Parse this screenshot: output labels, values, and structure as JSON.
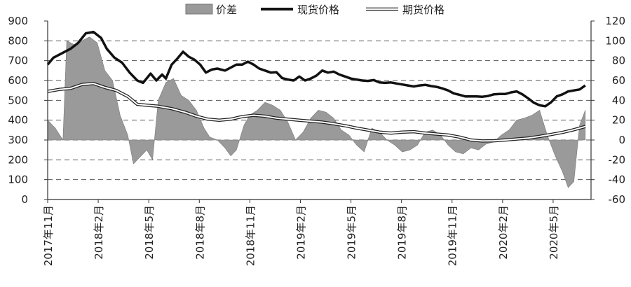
{
  "chart_data": {
    "type": "line",
    "title": "",
    "xlabel": "",
    "ylabel": "",
    "legend": {
      "placement": "top-center",
      "entries": [
        {
          "key": "spread",
          "label": "价差",
          "style": "area"
        },
        {
          "key": "spot",
          "label": "现货价格",
          "style": "thick-line"
        },
        {
          "key": "futures",
          "label": "期货价格",
          "style": "double-line"
        }
      ]
    },
    "x_ticks": [
      "2017年11月",
      "2018年2月",
      "2018年5月",
      "2018年8月",
      "2018年11月",
      "2019年2月",
      "2019年5月",
      "2019年8月",
      "2019年11月",
      "2020年2月",
      "2020年5月"
    ],
    "y_left": {
      "min": 0,
      "max": 900,
      "ticks": [
        0,
        100,
        200,
        300,
        400,
        500,
        600,
        700,
        800,
        900
      ]
    },
    "y_right": {
      "min": -60,
      "max": 120,
      "ticks": [
        -60,
        -40,
        -20,
        0,
        20,
        40,
        60,
        80,
        100,
        120
      ]
    },
    "grid": "dashed horizontal",
    "x_unit": "months since 2017-11",
    "series": [
      {
        "name": "现货价格",
        "axis": "left",
        "points": [
          [
            0,
            680
          ],
          [
            0.3,
            715
          ],
          [
            0.7,
            735
          ],
          [
            1.2,
            760
          ],
          [
            1.6,
            790
          ],
          [
            2.0,
            838
          ],
          [
            2.4,
            845
          ],
          [
            2.8,
            815
          ],
          [
            3.1,
            760
          ],
          [
            3.5,
            715
          ],
          [
            3.9,
            690
          ],
          [
            4.3,
            640
          ],
          [
            4.7,
            600
          ],
          [
            5.0,
            588
          ],
          [
            5.4,
            635
          ],
          [
            5.7,
            600
          ],
          [
            6.0,
            630
          ],
          [
            6.2,
            610
          ],
          [
            6.5,
            680
          ],
          [
            6.8,
            710
          ],
          [
            7.1,
            745
          ],
          [
            7.4,
            720
          ],
          [
            7.7,
            705
          ],
          [
            8.0,
            680
          ],
          [
            8.3,
            640
          ],
          [
            8.6,
            655
          ],
          [
            8.9,
            660
          ],
          [
            9.3,
            650
          ],
          [
            9.6,
            665
          ],
          [
            9.9,
            680
          ],
          [
            10.2,
            680
          ],
          [
            10.5,
            695
          ],
          [
            10.8,
            680
          ],
          [
            11.1,
            660
          ],
          [
            11.4,
            650
          ],
          [
            11.7,
            640
          ],
          [
            12.0,
            642
          ],
          [
            12.3,
            612
          ],
          [
            12.6,
            605
          ],
          [
            12.9,
            600
          ],
          [
            13.2,
            620
          ],
          [
            13.5,
            600
          ],
          [
            13.8,
            610
          ],
          [
            14.1,
            625
          ],
          [
            14.4,
            650
          ],
          [
            14.7,
            640
          ],
          [
            15.0,
            645
          ],
          [
            15.3,
            630
          ],
          [
            15.6,
            620
          ],
          [
            15.9,
            610
          ],
          [
            16.2,
            605
          ],
          [
            16.5,
            600
          ],
          [
            16.8,
            598
          ],
          [
            17.1,
            602
          ],
          [
            17.4,
            590
          ],
          [
            17.7,
            588
          ],
          [
            18.0,
            590
          ],
          [
            18.3,
            585
          ],
          [
            18.6,
            580
          ],
          [
            18.9,
            575
          ],
          [
            19.2,
            570
          ],
          [
            19.5,
            575
          ],
          [
            19.8,
            578
          ],
          [
            20.1,
            572
          ],
          [
            20.4,
            568
          ],
          [
            20.7,
            560
          ],
          [
            21.0,
            550
          ],
          [
            21.3,
            535
          ],
          [
            21.6,
            528
          ],
          [
            21.9,
            520
          ],
          [
            22.2,
            520
          ],
          [
            22.5,
            520
          ],
          [
            22.8,
            518
          ],
          [
            23.1,
            522
          ],
          [
            23.4,
            530
          ],
          [
            23.7,
            532
          ],
          [
            24.0,
            532
          ],
          [
            24.3,
            540
          ],
          [
            24.6,
            545
          ],
          [
            24.9,
            530
          ],
          [
            25.2,
            510
          ],
          [
            25.5,
            488
          ],
          [
            25.8,
            475
          ],
          [
            26.1,
            470
          ],
          [
            26.4,
            490
          ],
          [
            26.7,
            520
          ],
          [
            27.0,
            530
          ],
          [
            27.3,
            545
          ],
          [
            27.6,
            550
          ],
          [
            27.9,
            555
          ],
          [
            28.2,
            575
          ]
        ]
      },
      {
        "name": "期货价格",
        "axis": "left",
        "points": [
          [
            0,
            545
          ],
          [
            0.6,
            555
          ],
          [
            1.2,
            560
          ],
          [
            1.8,
            580
          ],
          [
            2.4,
            585
          ],
          [
            3.0,
            565
          ],
          [
            3.6,
            550
          ],
          [
            4.2,
            520
          ],
          [
            4.7,
            480
          ],
          [
            5.2,
            475
          ],
          [
            5.8,
            470
          ],
          [
            6.5,
            458
          ],
          [
            7.2,
            440
          ],
          [
            7.8,
            420
          ],
          [
            8.4,
            405
          ],
          [
            9.0,
            400
          ],
          [
            9.6,
            405
          ],
          [
            10.2,
            418
          ],
          [
            10.8,
            425
          ],
          [
            11.4,
            420
          ],
          [
            12.0,
            410
          ],
          [
            12.6,
            405
          ],
          [
            13.2,
            400
          ],
          [
            13.8,
            395
          ],
          [
            14.4,
            390
          ],
          [
            15.0,
            382
          ],
          [
            15.6,
            372
          ],
          [
            16.2,
            360
          ],
          [
            16.8,
            350
          ],
          [
            17.4,
            340
          ],
          [
            18.0,
            335
          ],
          [
            18.6,
            340
          ],
          [
            19.2,
            342
          ],
          [
            19.8,
            335
          ],
          [
            20.4,
            330
          ],
          [
            21.0,
            325
          ],
          [
            21.6,
            315
          ],
          [
            22.2,
            300
          ],
          [
            22.8,
            295
          ],
          [
            23.4,
            296
          ],
          [
            24.0,
            300
          ],
          [
            24.6,
            305
          ],
          [
            25.2,
            310
          ],
          [
            25.8,
            318
          ],
          [
            26.4,
            328
          ],
          [
            27.0,
            338
          ],
          [
            27.6,
            352
          ],
          [
            28.2,
            368
          ]
        ]
      },
      {
        "name": "价差",
        "axis": "right",
        "points": [
          [
            0,
            20
          ],
          [
            0.4,
            12
          ],
          [
            0.8,
            0
          ],
          [
            1.0,
            100
          ],
          [
            1.4,
            96
          ],
          [
            1.8,
            100
          ],
          [
            2.2,
            104
          ],
          [
            2.6,
            98
          ],
          [
            3.0,
            70
          ],
          [
            3.4,
            60
          ],
          [
            3.8,
            25
          ],
          [
            4.2,
            5
          ],
          [
            4.5,
            -24
          ],
          [
            4.8,
            -18
          ],
          [
            5.2,
            -10
          ],
          [
            5.5,
            -20
          ],
          [
            5.8,
            40
          ],
          [
            6.2,
            58
          ],
          [
            6.6,
            62
          ],
          [
            7.0,
            45
          ],
          [
            7.4,
            40
          ],
          [
            7.8,
            30
          ],
          [
            8.2,
            12
          ],
          [
            8.5,
            3
          ],
          [
            8.9,
            0
          ],
          [
            9.3,
            -8
          ],
          [
            9.6,
            -16
          ],
          [
            9.9,
            -10
          ],
          [
            10.3,
            15
          ],
          [
            10.6,
            25
          ],
          [
            11.0,
            30
          ],
          [
            11.4,
            38
          ],
          [
            11.8,
            35
          ],
          [
            12.2,
            30
          ],
          [
            12.6,
            18
          ],
          [
            13.0,
            0
          ],
          [
            13.4,
            8
          ],
          [
            13.8,
            22
          ],
          [
            14.2,
            30
          ],
          [
            14.6,
            28
          ],
          [
            15.0,
            22
          ],
          [
            15.4,
            10
          ],
          [
            15.8,
            5
          ],
          [
            16.2,
            -5
          ],
          [
            16.6,
            -12
          ],
          [
            17.0,
            12
          ],
          [
            17.4,
            8
          ],
          [
            17.8,
            0
          ],
          [
            18.2,
            -5
          ],
          [
            18.6,
            -12
          ],
          [
            19.0,
            -10
          ],
          [
            19.4,
            -5
          ],
          [
            19.8,
            8
          ],
          [
            20.2,
            10
          ],
          [
            20.6,
            5
          ],
          [
            21.0,
            -5
          ],
          [
            21.4,
            -12
          ],
          [
            21.8,
            -14
          ],
          [
            22.2,
            -8
          ],
          [
            22.6,
            -10
          ],
          [
            23.0,
            -4
          ],
          [
            23.4,
            -2
          ],
          [
            23.8,
            5
          ],
          [
            24.2,
            10
          ],
          [
            24.6,
            20
          ],
          [
            25.0,
            22
          ],
          [
            25.4,
            25
          ],
          [
            25.8,
            30
          ],
          [
            26.2,
            5
          ],
          [
            26.6,
            -15
          ],
          [
            27.0,
            -32
          ],
          [
            27.3,
            -48
          ],
          [
            27.6,
            -42
          ],
          [
            27.9,
            15
          ],
          [
            28.2,
            30
          ]
        ]
      }
    ]
  }
}
